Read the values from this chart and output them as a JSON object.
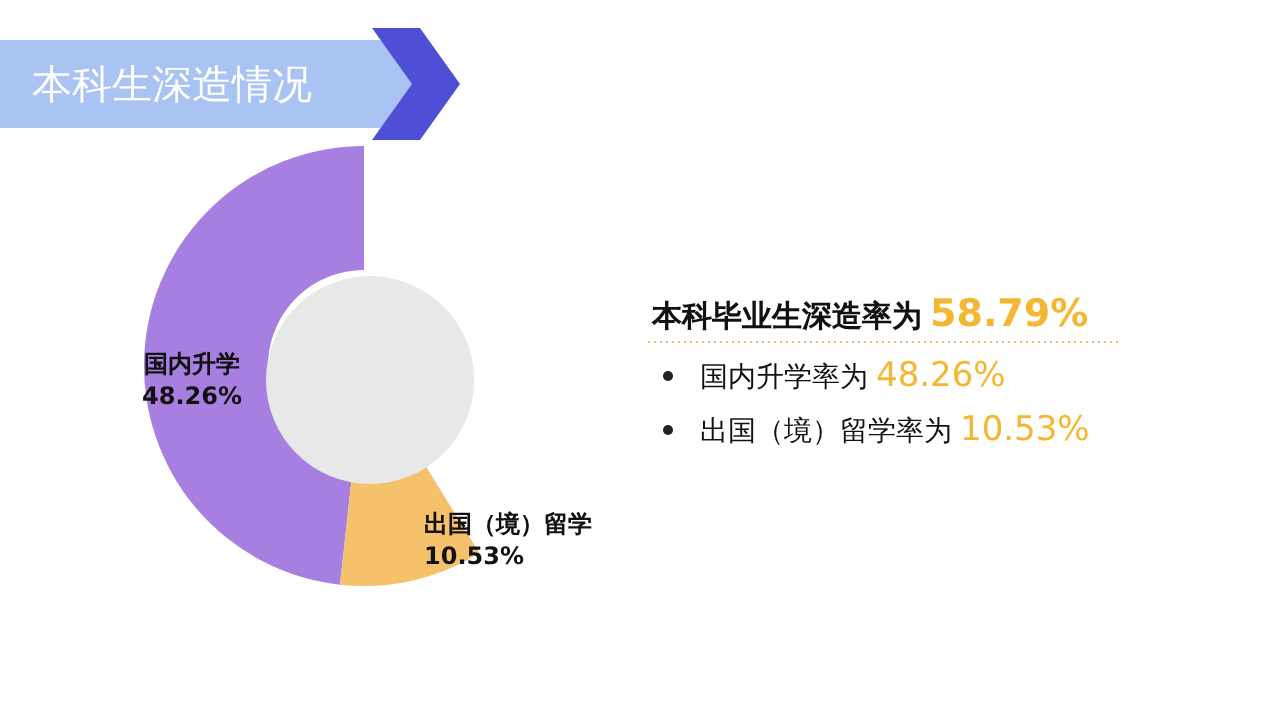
{
  "chart_data": {
    "type": "donut",
    "title": "本科生深造情况",
    "categories": [
      "国内升学",
      "出国（境）留学"
    ],
    "values": [
      48.26,
      10.53
    ],
    "colors": [
      "#a77fe0",
      "#f5c26b"
    ],
    "value_labels": [
      "48.26%",
      "10.53%"
    ],
    "annotations": [
      "本科毕业生深造率为 58.79%",
      "国内升学率为 48.26%",
      "出国（境）留学率为 10.53%"
    ]
  }
}
